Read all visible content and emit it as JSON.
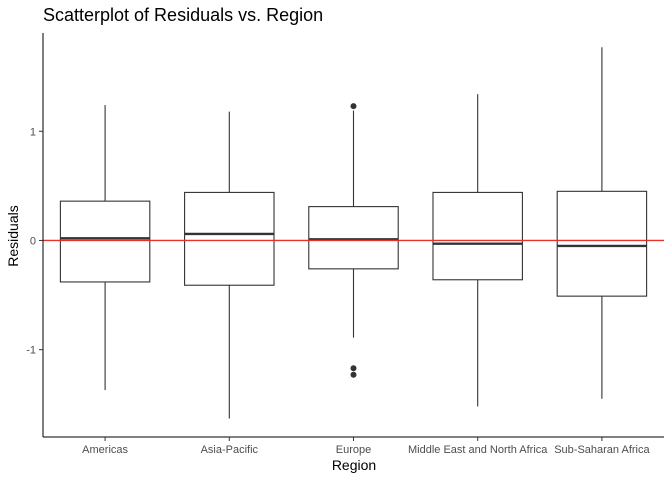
{
  "chart_data": {
    "type": "boxplot",
    "title": "Scatterplot of Residuals vs. Region",
    "xlabel": "Region",
    "ylabel": "Residuals",
    "ylim": [
      -1.8,
      1.9
    ],
    "yticks": [
      -1,
      0,
      1
    ],
    "grid": false,
    "legend": "none",
    "reference_line": {
      "y": 0,
      "color": "#e8302a"
    },
    "colors": {
      "box_stroke": "#333333",
      "axis": "#000000",
      "tick_label": "#4d4d4d"
    },
    "categories": [
      "Americas",
      "Asia-Pacific",
      "Europe",
      "Middle East and North Africa",
      "Sub-Saharan Africa"
    ],
    "boxes": [
      {
        "category": "Americas",
        "lower_whisker": -1.37,
        "q1": -0.38,
        "median": 0.02,
        "q3": 0.36,
        "upper_whisker": 1.24,
        "outliers": []
      },
      {
        "category": "Asia-Pacific",
        "lower_whisker": -1.63,
        "q1": -0.41,
        "median": 0.06,
        "q3": 0.44,
        "upper_whisker": 1.18,
        "outliers": []
      },
      {
        "category": "Europe",
        "lower_whisker": -0.89,
        "q1": -0.26,
        "median": 0.01,
        "q3": 0.31,
        "upper_whisker": 1.19,
        "outliers": [
          1.23,
          -1.17,
          -1.23
        ]
      },
      {
        "category": "Middle East and North Africa",
        "lower_whisker": -1.52,
        "q1": -0.36,
        "median": -0.03,
        "q3": 0.44,
        "upper_whisker": 1.34,
        "outliers": []
      },
      {
        "category": "Sub-Saharan Africa",
        "lower_whisker": -1.45,
        "q1": -0.51,
        "median": -0.05,
        "q3": 0.45,
        "upper_whisker": 1.77,
        "outliers": []
      }
    ]
  }
}
